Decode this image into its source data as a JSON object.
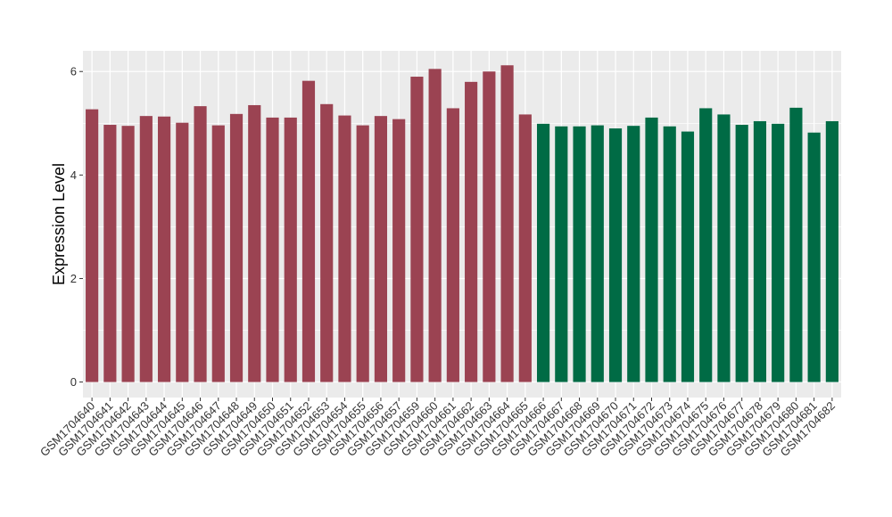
{
  "chart_data": {
    "type": "bar",
    "ylabel": "Expression Level",
    "xlabel": "",
    "ylim": [
      -0.3,
      6.4
    ],
    "yticks": [
      0,
      2,
      4,
      6
    ],
    "grid": true,
    "panel_background": "#EBEBEB",
    "grid_color": "#FFFFFF",
    "categories": [
      "GSM1704640",
      "GSM1704641",
      "GSM1704642",
      "GSM1704643",
      "GSM1704644",
      "GSM1704645",
      "GSM1704646",
      "GSM1704647",
      "GSM1704648",
      "GSM1704649",
      "GSM1704650",
      "GSM1704651",
      "GSM1704652",
      "GSM1704653",
      "GSM1704654",
      "GSM1704655",
      "GSM1704656",
      "GSM1704657",
      "GSM1704659",
      "GSM1704660",
      "GSM1704661",
      "GSM1704662",
      "GSM1704663",
      "GSM1704664",
      "GSM1704665",
      "GSM1704666",
      "GSM1704667",
      "GSM1704668",
      "GSM1704669",
      "GSM1704670",
      "GSM1704671",
      "GSM1704672",
      "GSM1704673",
      "GSM1704674",
      "GSM1704675",
      "GSM1704676",
      "GSM1704677",
      "GSM1704678",
      "GSM1704679",
      "GSM1704680",
      "GSM1704681",
      "GSM1704682"
    ],
    "values": [
      5.27,
      4.97,
      4.95,
      5.14,
      5.13,
      5.01,
      5.33,
      4.96,
      5.18,
      5.35,
      5.11,
      5.11,
      5.82,
      5.37,
      5.15,
      4.96,
      5.14,
      5.08,
      5.9,
      6.05,
      5.29,
      5.8,
      6.0,
      6.12,
      5.17,
      4.99,
      4.94,
      4.94,
      4.96,
      4.9,
      4.95,
      5.11,
      4.94,
      4.84,
      5.29,
      5.17,
      4.97,
      5.04,
      4.99,
      5.3,
      4.82,
      5.04
    ],
    "bar_colors": [
      "#9B4352",
      "#9B4352",
      "#9B4352",
      "#9B4352",
      "#9B4352",
      "#9B4352",
      "#9B4352",
      "#9B4352",
      "#9B4352",
      "#9B4352",
      "#9B4352",
      "#9B4352",
      "#9B4352",
      "#9B4352",
      "#9B4352",
      "#9B4352",
      "#9B4352",
      "#9B4352",
      "#9B4352",
      "#9B4352",
      "#9B4352",
      "#9B4352",
      "#9B4352",
      "#9B4352",
      "#9B4352",
      "#006B45",
      "#006B45",
      "#006B45",
      "#006B45",
      "#006B45",
      "#006B45",
      "#006B45",
      "#006B45",
      "#006B45",
      "#006B45",
      "#006B45",
      "#006B45",
      "#006B45",
      "#006B45",
      "#006B45",
      "#006B45",
      "#006B45"
    ]
  }
}
